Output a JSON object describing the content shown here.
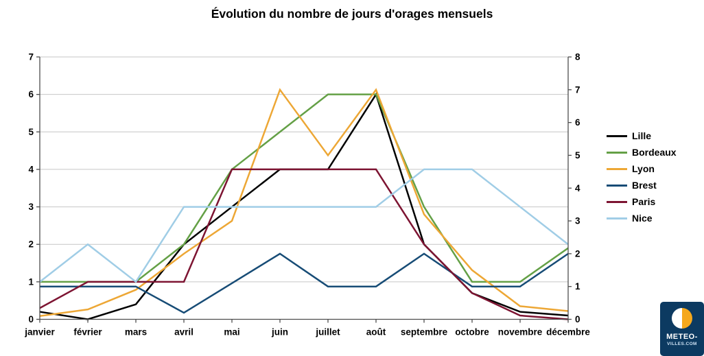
{
  "title": "Évolution du nombre de jours d'orages mensuels",
  "chart_data": {
    "type": "line",
    "categories": [
      "janvier",
      "février",
      "mars",
      "avril",
      "mai",
      "juin",
      "juillet",
      "août",
      "septembre",
      "octobre",
      "novembre",
      "décembre"
    ],
    "axes": {
      "left": {
        "min": 0,
        "max": 7,
        "ticks": [
          0,
          1,
          2,
          3,
          4,
          5,
          6,
          7
        ]
      },
      "right": {
        "min": 0,
        "max": 8,
        "ticks": [
          0,
          1,
          2,
          3,
          4,
          5,
          6,
          7,
          8
        ]
      }
    },
    "grid": true,
    "legend_position": "right",
    "series": [
      {
        "name": "Lille",
        "axis": "left",
        "color": "#000000",
        "values": [
          0.2,
          0,
          0.4,
          2,
          3,
          4,
          4,
          6,
          2,
          0.7,
          0.2,
          0.1
        ]
      },
      {
        "name": "Bordeaux",
        "axis": "left",
        "color": "#64a046",
        "values": [
          1,
          1,
          1,
          2,
          4,
          5,
          6,
          6,
          3,
          1,
          1,
          1.9
        ]
      },
      {
        "name": "Lyon",
        "axis": "right",
        "color": "#eda735",
        "values": [
          0.1,
          0.3,
          0.9,
          2,
          3,
          7,
          5,
          7,
          3.2,
          1.5,
          0.4,
          0.25
        ]
      },
      {
        "name": "Brest",
        "axis": "right",
        "color": "#174c76",
        "values": [
          1,
          1,
          1,
          0.2,
          1.1,
          2,
          1,
          1,
          2,
          1,
          1,
          2
        ]
      },
      {
        "name": "Paris",
        "axis": "left",
        "color": "#7d1432",
        "values": [
          0.3,
          1,
          1,
          1,
          4,
          4,
          4,
          4,
          2,
          0.7,
          0.1,
          0
        ]
      },
      {
        "name": "Nice",
        "axis": "left",
        "color": "#a0cde6",
        "values": [
          1,
          2,
          1,
          3,
          3,
          3,
          3,
          3,
          4,
          4,
          3,
          2
        ]
      }
    ]
  },
  "logo": {
    "line1": "METEO-",
    "line2": "VILLES.COM"
  }
}
